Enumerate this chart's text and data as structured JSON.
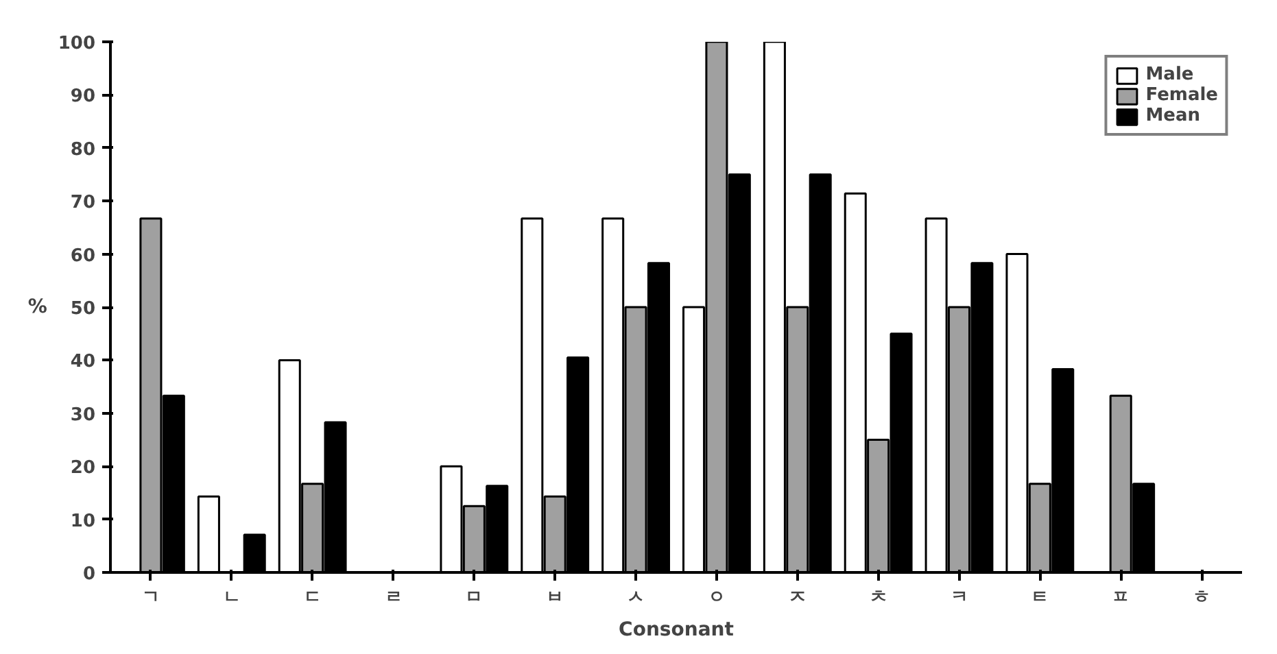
{
  "chart_data": {
    "type": "bar",
    "xlabel": "Consonant",
    "ylabel": "%",
    "categories": [
      "ㄱ",
      "ㄴ",
      "ㄷ",
      "ㄹ",
      "ㅁ",
      "ㅂ",
      "ㅅ",
      "ㅇ",
      "ㅈ",
      "ㅊ",
      "ㅋ",
      "ㅌ",
      "ㅍ",
      "ㅎ"
    ],
    "series": [
      {
        "name": "Male",
        "color": "#ffffff",
        "values": [
          0,
          14.3,
          40,
          0,
          20,
          66.7,
          66.7,
          50,
          100,
          71.4,
          66.7,
          60,
          0,
          0
        ]
      },
      {
        "name": "Female",
        "color": "#a0a0a0",
        "values": [
          66.7,
          0,
          16.7,
          0,
          12.5,
          14.3,
          50,
          100,
          50,
          25,
          50,
          16.7,
          33.3,
          0
        ]
      },
      {
        "name": "Mean",
        "color": "#000000",
        "values": [
          33.3,
          7.1,
          28.3,
          0,
          16.3,
          40.5,
          58.3,
          75,
          75,
          45,
          58.3,
          38.3,
          16.7,
          0
        ]
      }
    ],
    "ylim": [
      0,
      100
    ],
    "yticks": [
      0,
      10,
      20,
      30,
      40,
      50,
      60,
      70,
      80,
      90,
      100
    ],
    "grid": false,
    "legend": "top right"
  }
}
